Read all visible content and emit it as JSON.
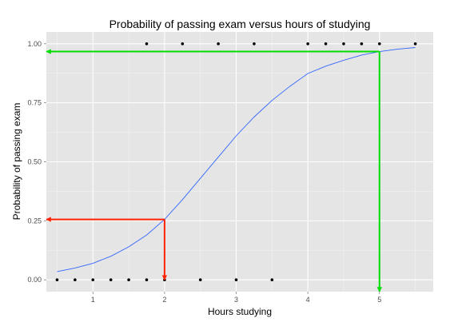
{
  "chart_data": {
    "type": "scatter",
    "title": "Probability of passing exam versus hours of studying",
    "xlabel": "Hours studying",
    "ylabel": "Probability of passing exam",
    "xlim": [
      0.35,
      5.75
    ],
    "ylim": [
      -0.05,
      1.05
    ],
    "x_ticks": [
      {
        "value": 1,
        "label": "1"
      },
      {
        "value": 2,
        "label": "2"
      },
      {
        "value": 3,
        "label": "3"
      },
      {
        "value": 4,
        "label": "4"
      },
      {
        "value": 5,
        "label": "5"
      }
    ],
    "y_ticks": [
      {
        "value": 0.0,
        "label": "0.00"
      },
      {
        "value": 0.25,
        "label": "0.25"
      },
      {
        "value": 0.5,
        "label": "0.50"
      },
      {
        "value": 0.75,
        "label": "0.75"
      },
      {
        "value": 1.0,
        "label": "1.00"
      }
    ],
    "grid": true,
    "background": "#e5e5e5",
    "series": [
      {
        "type": "scatter",
        "color": "#000000",
        "points": [
          {
            "x": 0.5,
            "y": 0
          },
          {
            "x": 0.75,
            "y": 0
          },
          {
            "x": 1.0,
            "y": 0
          },
          {
            "x": 1.25,
            "y": 0
          },
          {
            "x": 1.5,
            "y": 0
          },
          {
            "x": 1.75,
            "y": 0
          },
          {
            "x": 1.75,
            "y": 1
          },
          {
            "x": 2.0,
            "y": 0
          },
          {
            "x": 2.25,
            "y": 1
          },
          {
            "x": 2.5,
            "y": 0
          },
          {
            "x": 2.75,
            "y": 1
          },
          {
            "x": 3.0,
            "y": 0
          },
          {
            "x": 3.25,
            "y": 1
          },
          {
            "x": 3.5,
            "y": 0
          },
          {
            "x": 4.0,
            "y": 1
          },
          {
            "x": 4.25,
            "y": 1
          },
          {
            "x": 4.5,
            "y": 1
          },
          {
            "x": 4.75,
            "y": 1
          },
          {
            "x": 5.0,
            "y": 1
          },
          {
            "x": 5.5,
            "y": 1
          }
        ]
      },
      {
        "type": "line",
        "color": "#3366ff",
        "x": [
          0.5,
          0.75,
          1.0,
          1.25,
          1.5,
          1.75,
          2.0,
          2.25,
          2.5,
          2.75,
          3.0,
          3.25,
          3.5,
          3.75,
          4.0,
          4.25,
          4.5,
          4.75,
          5.0,
          5.25,
          5.5
        ],
        "y": [
          0.035,
          0.05,
          0.07,
          0.1,
          0.14,
          0.19,
          0.256,
          0.34,
          0.43,
          0.52,
          0.61,
          0.69,
          0.76,
          0.82,
          0.874,
          0.905,
          0.93,
          0.952,
          0.967,
          0.977,
          0.984
        ]
      }
    ],
    "annotations": [
      {
        "type": "arrow",
        "color": "#ff2200",
        "from": {
          "x": 2.0,
          "y": 0.256
        },
        "to": {
          "x": 0.35,
          "y": 0.256
        }
      },
      {
        "type": "arrow",
        "color": "#ff2200",
        "from": {
          "x": 2.0,
          "y": 0.256
        },
        "to": {
          "x": 2.0,
          "y": 0.0
        }
      },
      {
        "type": "arrow",
        "color": "#00dd00",
        "from": {
          "x": 5.0,
          "y": 0.967
        },
        "to": {
          "x": 0.35,
          "y": 0.967
        }
      },
      {
        "type": "arrow",
        "color": "#00dd00",
        "from": {
          "x": 5.0,
          "y": 0.967
        },
        "to": {
          "x": 5.0,
          "y": -0.05
        }
      }
    ]
  }
}
